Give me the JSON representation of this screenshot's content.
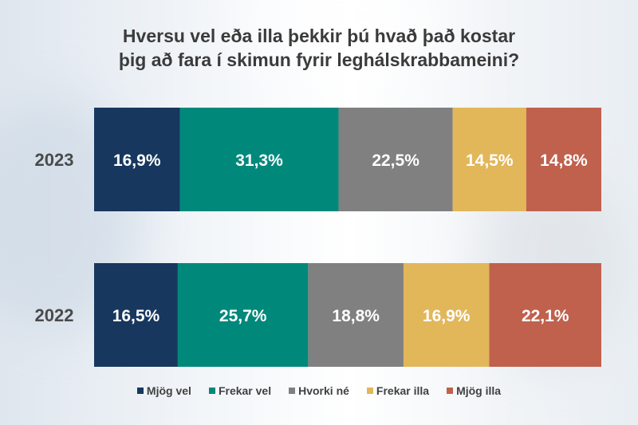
{
  "chart_data": {
    "type": "bar",
    "orientation": "horizontal",
    "stacked": true,
    "title": "Hversu vel eða illa þekkir þú hvað það kostar\nþig að fara í skimun fyrir leghálskrabbameini?",
    "categories": [
      "2023",
      "2022"
    ],
    "series": [
      {
        "name": "Mjög vel",
        "color": "#17375e",
        "values": [
          16.9,
          16.5
        ],
        "labels": [
          "16,9%",
          "16,5%"
        ]
      },
      {
        "name": "Frekar vel",
        "color": "#00897b",
        "values": [
          31.3,
          25.7
        ],
        "labels": [
          "31,3%",
          "25,7%"
        ]
      },
      {
        "name": "Hvorki né",
        "color": "#808080",
        "values": [
          22.5,
          18.8
        ],
        "labels": [
          "22,5%",
          "18,8%"
        ]
      },
      {
        "name": "Frekar illa",
        "color": "#e2b75a",
        "values": [
          14.5,
          16.9
        ],
        "labels": [
          "14,5%",
          "16,9%"
        ]
      },
      {
        "name": "Mjög illa",
        "color": "#c0614d",
        "values": [
          14.8,
          22.1
        ],
        "labels": [
          "14,8%",
          "22,1%"
        ]
      }
    ],
    "grid": false,
    "legend_position": "bottom"
  }
}
